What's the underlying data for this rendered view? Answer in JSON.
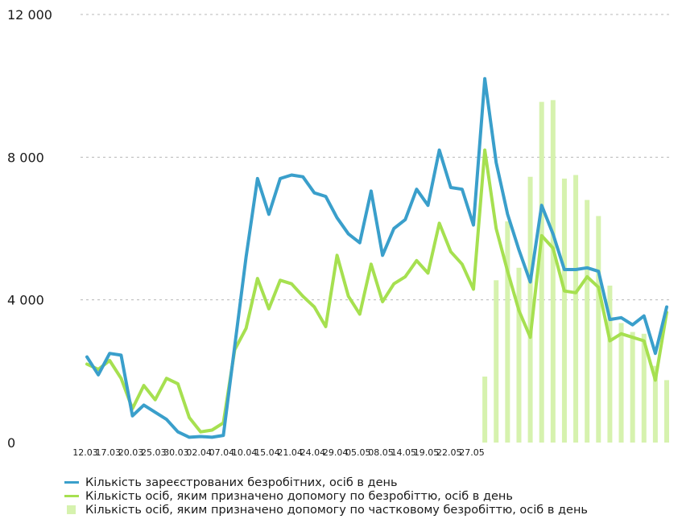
{
  "chart_data": {
    "type": "line",
    "yticks": [
      {
        "value": 0,
        "label": "0"
      },
      {
        "value": 4000,
        "label": "4 000"
      },
      {
        "value": 8000,
        "label": "8 000"
      },
      {
        "value": 12000,
        "label": "12 000"
      }
    ],
    "ylim": [
      0,
      12000
    ],
    "grid": true,
    "x_labels": [
      "12.03",
      "17.03",
      "20.03",
      "25.03",
      "30.03",
      "02.04",
      "07.04",
      "10.04",
      "15.04",
      "21.04",
      "24.04",
      "29.04",
      "05.05",
      "08.05",
      "14.05",
      "19.05",
      "22.05",
      "27.05"
    ],
    "x_label_index": [
      0,
      2,
      4,
      6,
      8,
      10,
      12,
      14,
      16,
      18,
      20,
      22,
      24,
      26,
      28,
      30,
      32,
      34
    ],
    "colors": {
      "registered": "#3a9fcb",
      "assigned": "#a6e050",
      "partial": "#d6f2ae"
    },
    "series": [
      {
        "name": "Кількість зареєстрованих безробітних, осіб в день",
        "type": "line",
        "values": [
          2400,
          1900,
          2500,
          2450,
          750,
          1050,
          850,
          650,
          300,
          150,
          170,
          150,
          200,
          2700,
          5200,
          7400,
          6400,
          7400,
          7500,
          7450,
          7000,
          6900,
          6300,
          5850,
          5600,
          7050,
          5250,
          6000,
          6250,
          7100,
          6650,
          8200,
          7150,
          7100,
          6100,
          10200,
          7850,
          6400,
          5400,
          4500,
          6650,
          5850,
          4850,
          4850,
          4900,
          4800,
          3450,
          3500,
          3300,
          3550,
          2500,
          3800
        ]
      },
      {
        "name": "Кількість осіб, яким призначено допомогу по безробіттю, осіб в день",
        "type": "line",
        "values": [
          2200,
          2050,
          2300,
          1800,
          950,
          1600,
          1200,
          1800,
          1650,
          700,
          300,
          350,
          550,
          2600,
          3200,
          4600,
          3750,
          4550,
          4450,
          4100,
          3800,
          3250,
          5250,
          4100,
          3600,
          5000,
          3950,
          4450,
          4650,
          5100,
          4750,
          6150,
          5350,
          5000,
          4300,
          8200,
          6000,
          4800,
          3700,
          2950,
          5800,
          5450,
          4250,
          4200,
          4650,
          4350,
          2850,
          3050,
          2950,
          2850,
          1750,
          3650
        ]
      },
      {
        "name": "Кількість осіб, яким призначено допомогу по частковому безробіттю, осіб в день",
        "type": "bar",
        "values": [
          null,
          null,
          null,
          null,
          null,
          null,
          null,
          null,
          null,
          null,
          null,
          null,
          null,
          null,
          null,
          null,
          null,
          null,
          null,
          null,
          null,
          null,
          null,
          null,
          null,
          null,
          null,
          null,
          null,
          null,
          null,
          null,
          null,
          null,
          null,
          1850,
          4550,
          6200,
          4900,
          7450,
          9550,
          9600,
          7400,
          7500,
          6800,
          6350,
          4400,
          3350,
          3100,
          3050,
          2150,
          1750
        ]
      }
    ]
  }
}
